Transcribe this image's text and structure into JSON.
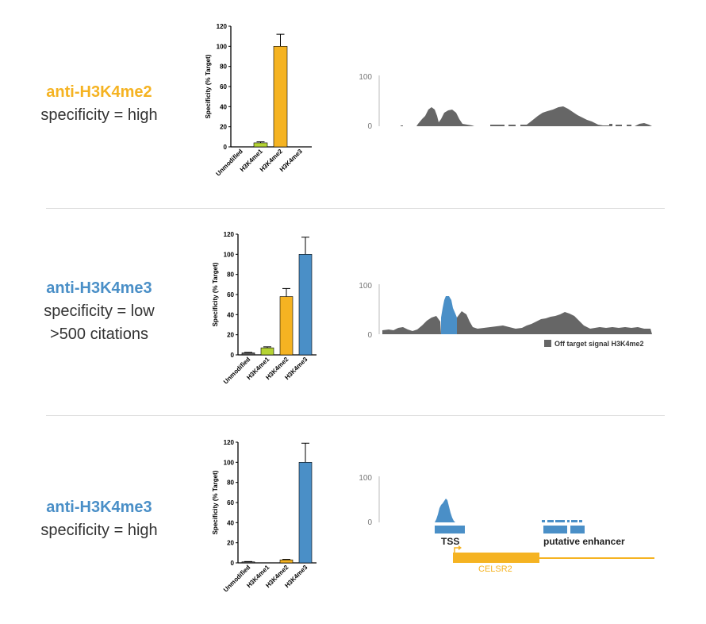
{
  "colors": {
    "orange": "#f5b322",
    "blue": "#4a8fc7",
    "green": "#b5d334",
    "gray": "#5f5f5f"
  },
  "rows": [
    {
      "antibody": "anti-H3K4me2",
      "antibody_color": "#f5b322",
      "lines": [
        "specificity = high"
      ],
      "track_note": "",
      "track_legend": ""
    },
    {
      "antibody": "anti-H3K4me3",
      "antibody_color": "#4a8fc7",
      "lines": [
        "specificity = low",
        ">500 citations"
      ],
      "track_note": "",
      "track_legend": "Off target signal H3K4me2"
    },
    {
      "antibody": "anti-H3K4me3",
      "antibody_color": "#4a8fc7",
      "lines": [
        "specificity = high"
      ],
      "track_note": "",
      "track_legend": ""
    }
  ],
  "track_annotations": {
    "tss": "TSS",
    "enhancer": "putative enhancer",
    "gene": "CELSR2"
  },
  "track_ticks": [
    "100",
    "0"
  ],
  "chart_data": [
    {
      "type": "bar",
      "ylabel": "Specificity (% Target)",
      "categories": [
        "Unmodified",
        "H3K4me1",
        "H3K4me2",
        "H3K4me3"
      ],
      "values": [
        0,
        4,
        100,
        0
      ],
      "errors": [
        0,
        1,
        12,
        0
      ],
      "bar_colors": [
        "#5f5f5f",
        "#b5d334",
        "#f5b322",
        "#4a8fc7"
      ],
      "ylim": [
        0,
        120
      ],
      "yticks": [
        0,
        20,
        40,
        60,
        80,
        100,
        120
      ]
    },
    {
      "type": "bar",
      "ylabel": "Specificity (% Target)",
      "categories": [
        "Unmodified",
        "H3K4me1",
        "H3K4me2",
        "H3K4me3"
      ],
      "values": [
        2,
        7,
        58,
        100
      ],
      "errors": [
        0.5,
        1,
        8,
        17
      ],
      "bar_colors": [
        "#5f5f5f",
        "#b5d334",
        "#f5b322",
        "#4a8fc7"
      ],
      "ylim": [
        0,
        120
      ],
      "yticks": [
        0,
        20,
        40,
        60,
        80,
        100,
        120
      ]
    },
    {
      "type": "bar",
      "ylabel": "Specificity (% Target)",
      "categories": [
        "Unmodified",
        "H3K4me1",
        "H3K4me2",
        "H3K4me3"
      ],
      "values": [
        1,
        0,
        3,
        100
      ],
      "errors": [
        0.3,
        0,
        0.5,
        19
      ],
      "bar_colors": [
        "#5f5f5f",
        "#b5d334",
        "#f5b322",
        "#4a8fc7"
      ],
      "ylim": [
        0,
        120
      ],
      "yticks": [
        0,
        20,
        40,
        60,
        80,
        100,
        120
      ]
    }
  ]
}
